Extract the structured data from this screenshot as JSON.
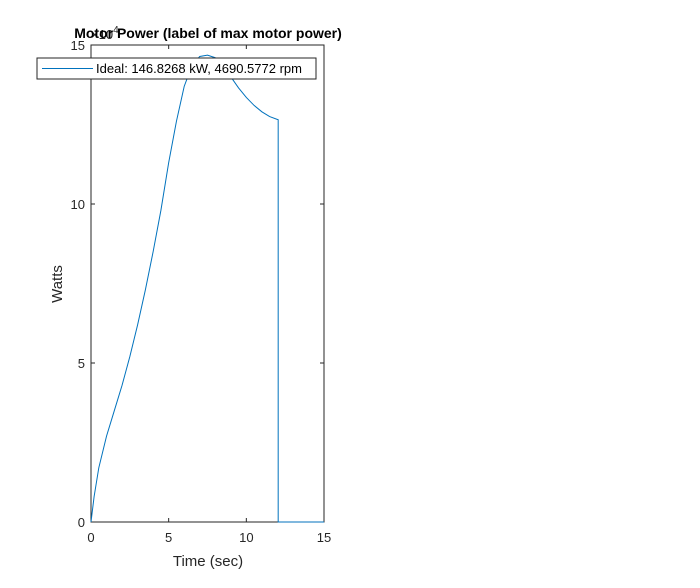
{
  "chart_data": {
    "type": "line",
    "title": "Motor Power (label of max motor power)",
    "xlabel": "Time (sec)",
    "ylabel": "Watts",
    "y_exponent_label": "×10",
    "y_exponent_power": "4",
    "xlim": [
      0,
      15
    ],
    "ylim": [
      0,
      150000
    ],
    "xticks": [
      "0",
      "5",
      "10",
      "15"
    ],
    "yticks": [
      "0",
      "5",
      "10",
      "15"
    ],
    "xtick_values": [
      0,
      5,
      10,
      15
    ],
    "ytick_values": [
      0,
      50000,
      100000,
      150000
    ],
    "grid": false,
    "legend_position": "top-left",
    "series": [
      {
        "name": "Ideal: 146.8268 kW, 4690.5772 rpm",
        "color": "#0072bd",
        "x": [
          0,
          0.2,
          0.5,
          1,
          1.5,
          2,
          2.5,
          3,
          3.5,
          4,
          4.5,
          5,
          5.5,
          6,
          6.5,
          7,
          7.5,
          8,
          8.5,
          9,
          9.5,
          10,
          10.5,
          11,
          11.5,
          12.05,
          12.05,
          12.1,
          15
        ],
        "y": [
          0,
          8000,
          17000,
          27000,
          35000,
          43000,
          52000,
          62000,
          73000,
          85000,
          98000,
          113000,
          126000,
          137000,
          143500,
          146400,
          146826,
          146000,
          143500,
          140000,
          136500,
          133500,
          131000,
          129000,
          127500,
          126500,
          0,
          0,
          0
        ]
      }
    ]
  }
}
